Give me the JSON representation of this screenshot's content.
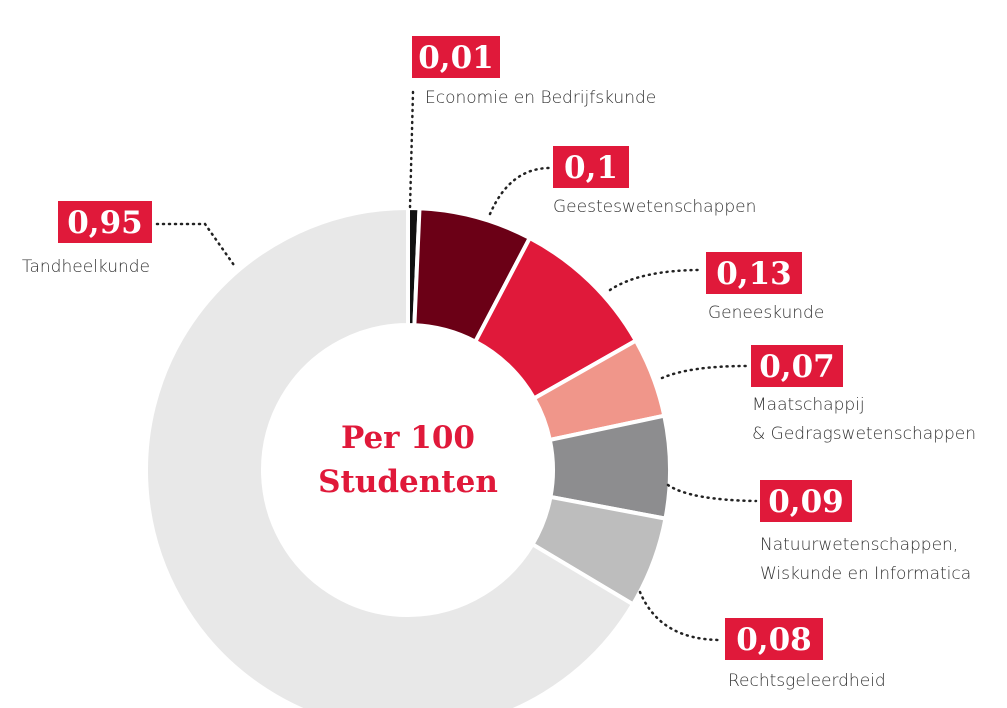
{
  "chart_data": {
    "type": "donut",
    "center_label": "Per 100\nStudenten",
    "categories": [
      "Economie en Bedrijfskunde",
      "Geesteswetenschappen",
      "Geneeskunde",
      "Maatschappij\n& Gedragswetenschappen",
      "Natuurwetenschappen,\nWiskunde en Informatica",
      "Rechtsgeleerdheid",
      "Tandheelkunde"
    ],
    "values": [
      0.01,
      0.1,
      0.13,
      0.07,
      0.09,
      0.08,
      0.95
    ],
    "value_labels": [
      "0,01",
      "0,1",
      "0,13",
      "0,07",
      "0,09",
      "0,08",
      "0,95"
    ],
    "colors": [
      "#111111",
      "#6b0016",
      "#e0193a",
      "#f0968a",
      "#8d8d8f",
      "#bdbdbd",
      "#e8e8e8"
    ]
  }
}
